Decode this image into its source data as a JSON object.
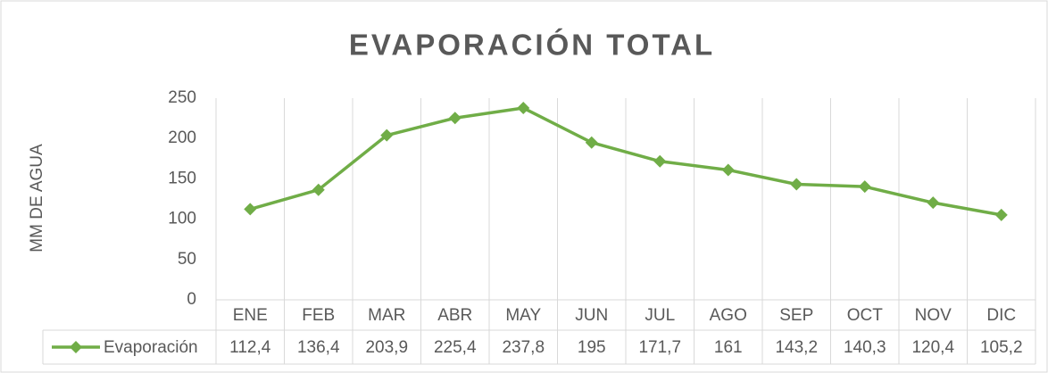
{
  "chart_data": {
    "type": "line",
    "title": "EVAPORACIÓN TOTAL",
    "y_label": "MM DE AGUA",
    "categories": [
      "ENE",
      "FEB",
      "MAR",
      "ABR",
      "MAY",
      "JUN",
      "JUL",
      "AGO",
      "SEP",
      "OCT",
      "NOV",
      "DIC"
    ],
    "series": [
      {
        "name": "Evaporación",
        "color": "#70ad47",
        "values": [
          112.4,
          136.4,
          203.9,
          225.4,
          237.8,
          195,
          171.7,
          161,
          143.2,
          140.3,
          120.4,
          105.2
        ],
        "value_labels": [
          "112,4",
          "136,4",
          "203,9",
          "225,4",
          "237,8",
          "195",
          "171,7",
          "161",
          "143,2",
          "140,3",
          "120,4",
          "105,2"
        ]
      }
    ],
    "ylim": [
      0,
      250
    ],
    "yticks": [
      0,
      50,
      100,
      150,
      200,
      250
    ]
  }
}
